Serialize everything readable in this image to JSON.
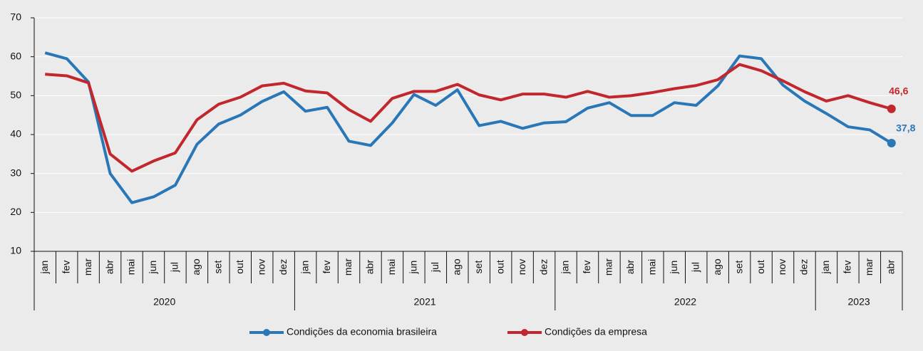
{
  "chart_data": {
    "type": "line",
    "categories": [
      "jan",
      "fev",
      "mar",
      "abr",
      "mai",
      "jun",
      "jul",
      "ago",
      "set",
      "out",
      "nov",
      "dez",
      "jan",
      "fev",
      "mar",
      "abr",
      "mai",
      "jun",
      "jul",
      "ago",
      "set",
      "out",
      "nov",
      "dez",
      "jan",
      "fev",
      "mar",
      "abr",
      "mai",
      "jun",
      "jul",
      "ago",
      "set",
      "out",
      "nov",
      "dez",
      "jan",
      "fev",
      "mar",
      "abr"
    ],
    "groups": [
      {
        "label": "2020",
        "count": 12
      },
      {
        "label": "2021",
        "count": 12
      },
      {
        "label": "2022",
        "count": 12
      },
      {
        "label": "2023",
        "count": 4
      }
    ],
    "series": [
      {
        "name": "Condições da economia brasileira",
        "color": "#2a77b8",
        "values": [
          61,
          59.5,
          53.5,
          30,
          22.5,
          24,
          27,
          37.5,
          42.7,
          45,
          48.5,
          51,
          46,
          47,
          38.3,
          37.2,
          43,
          50.3,
          47.5,
          51.5,
          42.3,
          43.4,
          41.6,
          43,
          43.3,
          46.8,
          48.2,
          44.9,
          44.9,
          48.2,
          47.5,
          52.5,
          60.2,
          59.5,
          52.7,
          48.6,
          45.4,
          42,
          41.2,
          37.8
        ],
        "value_labels": [
          null,
          null,
          null,
          null,
          null,
          null,
          null,
          null,
          null,
          null,
          null,
          null,
          null,
          null,
          null,
          null,
          null,
          null,
          null,
          null,
          null,
          null,
          null,
          null,
          null,
          null,
          null,
          null,
          null,
          null,
          null,
          null,
          null,
          null,
          null,
          null,
          null,
          null,
          null,
          "37,8"
        ]
      },
      {
        "name": "Condições da empresa",
        "color": "#c1272d",
        "values": [
          55.5,
          55.1,
          53.3,
          35,
          30.6,
          33.2,
          35.3,
          43.8,
          47.8,
          49.6,
          52.5,
          53.2,
          51.2,
          50.7,
          46.4,
          43.4,
          49.3,
          51.1,
          51.1,
          52.9,
          50.2,
          48.9,
          50.4,
          50.4,
          49.6,
          51.1,
          49.6,
          50,
          50.8,
          51.8,
          52.6,
          54.1,
          58,
          56.4,
          53.8,
          51,
          48.6,
          50,
          48.2,
          46.6
        ],
        "value_labels": [
          null,
          null,
          null,
          null,
          null,
          null,
          null,
          null,
          null,
          null,
          null,
          null,
          null,
          null,
          null,
          null,
          null,
          null,
          null,
          null,
          null,
          null,
          null,
          null,
          null,
          null,
          null,
          null,
          null,
          null,
          null,
          null,
          null,
          null,
          null,
          null,
          null,
          null,
          null,
          "46,6"
        ]
      }
    ],
    "ylim": [
      10,
      70
    ],
    "yticks": [
      10,
      20,
      30,
      40,
      50,
      60,
      70
    ],
    "grid": true,
    "legend": "bottom"
  }
}
